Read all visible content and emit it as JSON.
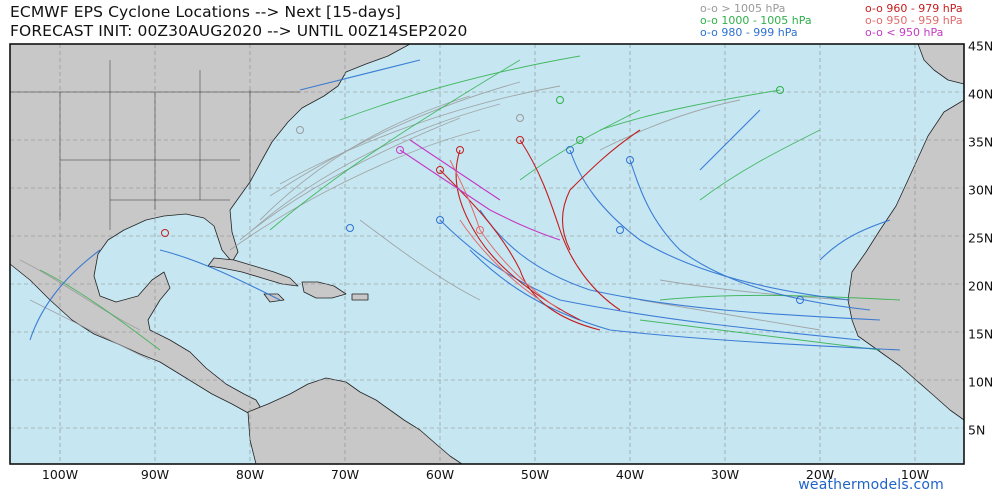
{
  "title": {
    "line1": "ECMWF EPS Cyclone Locations --> Next [15-days]",
    "line2": "FORECAST INIT: 00Z30AUG2020 --> UNTIL 00Z14SEP2020"
  },
  "legend": [
    {
      "label": "o-o > 1005 hPa",
      "color": "#9a9a9a"
    },
    {
      "label": "o-o 1000 - 1005 hPa",
      "color": "#2fb04a"
    },
    {
      "label": "o-o 980 - 999 hPa",
      "color": "#2e72d2"
    },
    {
      "label": "o-o 960 - 979 hPa",
      "color": "#c41e1e"
    },
    {
      "label": "o-o 950 - 959 hPa",
      "color": "#e06b6b"
    },
    {
      "label": "o-o < 950 hPa",
      "color": "#c43ac4"
    }
  ],
  "axes": {
    "lon_labels": [
      "100W",
      "90W",
      "80W",
      "70W",
      "60W",
      "50W",
      "40W",
      "30W",
      "20W",
      "10W"
    ],
    "lat_labels": [
      "45N",
      "40N",
      "35N",
      "30N",
      "25N",
      "20N",
      "15N",
      "10N",
      "5N"
    ]
  },
  "credit": "weathermodels.com",
  "colors": {
    "ocean": "#c6e7f2",
    "land": "#c8c8c8",
    "border": "#222222",
    "grid": "#8a8a8a"
  }
}
